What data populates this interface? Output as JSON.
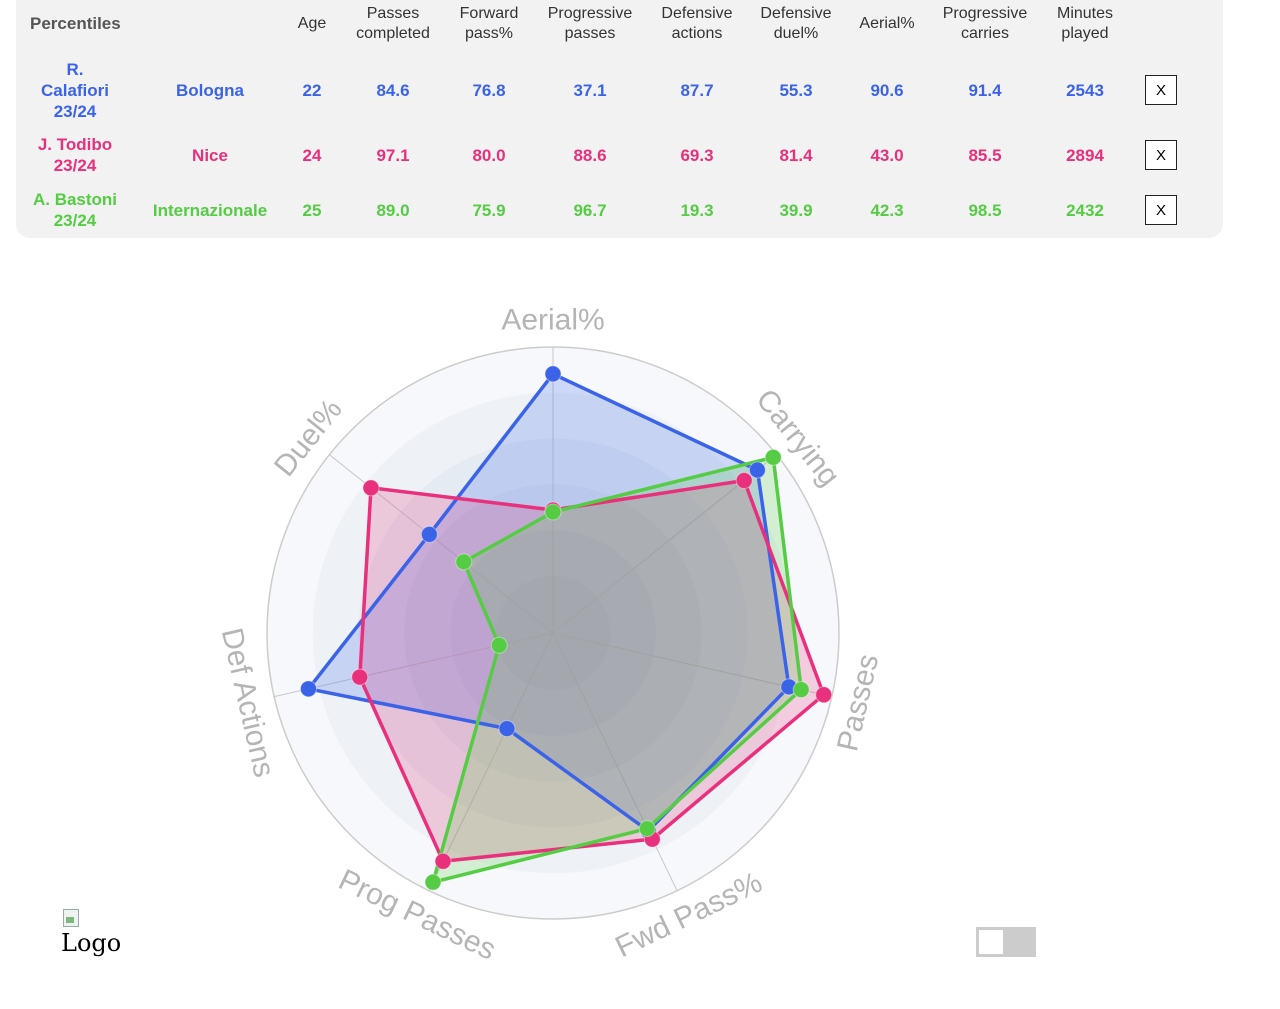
{
  "table": {
    "title": "Percentiles",
    "headers": [
      [
        "Age"
      ],
      [
        "Passes",
        "completed"
      ],
      [
        "Forward",
        "pass%"
      ],
      [
        "Progressive",
        "passes"
      ],
      [
        "Defensive",
        "actions"
      ],
      [
        "Defensive",
        "duel%"
      ],
      [
        "Aerial%"
      ],
      [
        "Progressive",
        "carries"
      ],
      [
        "Minutes",
        "played"
      ]
    ],
    "rows": [
      {
        "player": [
          "R.",
          "Calafiori",
          "23/24"
        ],
        "team": "Bologna",
        "color": "#3b63e8",
        "values": [
          "22",
          "84.6",
          "76.8",
          "37.1",
          "87.7",
          "55.3",
          "90.6",
          "91.4",
          "2543"
        ],
        "remove": "X"
      },
      {
        "player": [
          "J. Todibo",
          "23/24"
        ],
        "team": "Nice",
        "color": "#e8307c",
        "values": [
          "24",
          "97.1",
          "80.0",
          "88.6",
          "69.3",
          "81.4",
          "43.0",
          "85.5",
          "2894"
        ],
        "remove": "X"
      },
      {
        "player": [
          "A. Bastoni",
          "23/24"
        ],
        "team": "Internazionale",
        "color": "#55cc44",
        "values": [
          "25",
          "89.0",
          "75.9",
          "96.7",
          "19.3",
          "39.9",
          "42.3",
          "98.5",
          "2432"
        ],
        "remove": "X"
      }
    ]
  },
  "chart_data": {
    "type": "radar",
    "axes": [
      "Aerial%",
      "Carrying",
      "Passes",
      "Fwd Pass%",
      "Prog Passes",
      "Def Actions",
      "Duel%"
    ],
    "range": [
      0,
      100
    ],
    "series": [
      {
        "name": "R. Calafiori 23/24",
        "color": "#3b63e8",
        "values": [
          90.6,
          91.4,
          84.6,
          76.8,
          37.1,
          87.7,
          55.3
        ]
      },
      {
        "name": "J. Todibo 23/24",
        "color": "#e8307c",
        "values": [
          43.0,
          85.5,
          97.1,
          80.0,
          88.6,
          69.3,
          81.4
        ]
      },
      {
        "name": "A. Bastoni 23/24",
        "color": "#55cc44",
        "values": [
          42.3,
          98.5,
          89.0,
          75.9,
          96.7,
          19.3,
          39.9
        ]
      }
    ]
  },
  "logo": {
    "alt": "Logo"
  }
}
